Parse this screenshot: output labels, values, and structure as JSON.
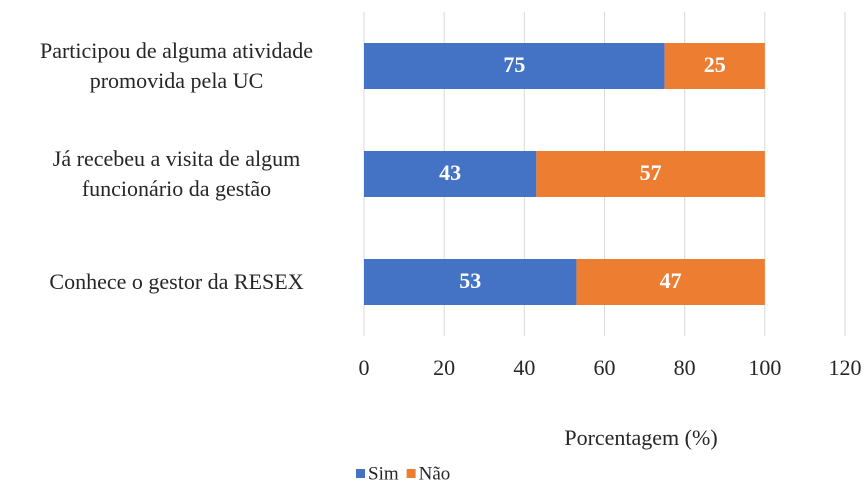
{
  "chart_data": {
    "type": "stacked_barh",
    "categories": [
      "Participou de alguma atividade promovida pela UC",
      "Já recebeu a visita de algum funcionário da gestão",
      "Conhece o gestor da RESEX"
    ],
    "series": [
      {
        "name": "Sim",
        "color": "#4472c4",
        "values": [
          75,
          43,
          53
        ]
      },
      {
        "name": "Não",
        "color": "#ed7d31",
        "values": [
          25,
          57,
          47
        ]
      }
    ],
    "xlabel": "Porcentagem (%)",
    "xlim": [
      0,
      120
    ],
    "xticks": [
      0,
      20,
      40,
      60,
      80,
      100,
      120
    ],
    "grid": true,
    "legend": "bottom"
  }
}
